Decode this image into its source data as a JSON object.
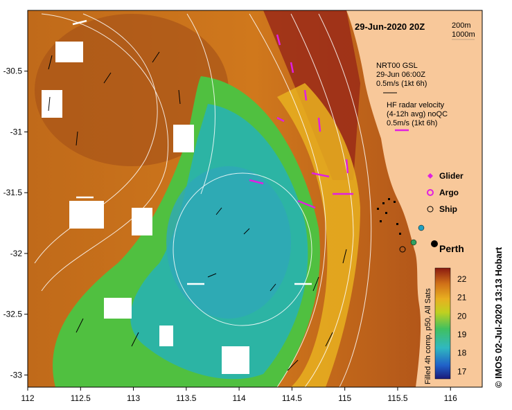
{
  "map": {
    "date_title": "29-Jun-2020 20Z",
    "depth_contours": [
      "200m",
      "1000m"
    ],
    "model_annotation": {
      "line1": "NRT00 GSL",
      "line2": "29-Jun 06:00Z",
      "line3": "0.5m/s (1kt 6h)"
    },
    "hf_radar_annotation": {
      "line1": "HF radar velocity",
      "line2": "(4-12h avg) noQC",
      "line3": "0.5m/s (1kt 6h)"
    },
    "legend": [
      {
        "label": "Glider",
        "color": "#e020e0",
        "marker": "diamond"
      },
      {
        "label": "Argo",
        "color": "#e020e0",
        "marker": "star"
      },
      {
        "label": "Ship",
        "color": "#000000",
        "marker": "circle"
      }
    ],
    "city": {
      "label": "Perth",
      "lon": 115.86,
      "lat": -31.95
    },
    "colorbar": {
      "title": "Filled 4h comp, p50, All Sats",
      "ticks": [
        "17",
        "18",
        "19",
        "20",
        "21",
        "22"
      ],
      "range": [
        16.6,
        22.6
      ]
    },
    "x_ticks": [
      "112",
      "112.5",
      "113",
      "113.5",
      "114",
      "114.5",
      "115",
      "115.5",
      "116"
    ],
    "y_ticks": [
      "-30.5",
      "-31",
      "-31.5",
      "-32",
      "-32.5",
      "-33"
    ],
    "x_range": [
      112,
      116.3
    ],
    "y_range": [
      -33.1,
      -30.0
    ],
    "credit": "© IMOS 02-Jul-2020 13:13 Hobart",
    "colors": {
      "land": "#f8c89a",
      "warm_sst": "#b4581a",
      "cool_sst": "#30b8a8",
      "glider": "#e020e0",
      "coast_stations": "#20a0c0"
    }
  }
}
